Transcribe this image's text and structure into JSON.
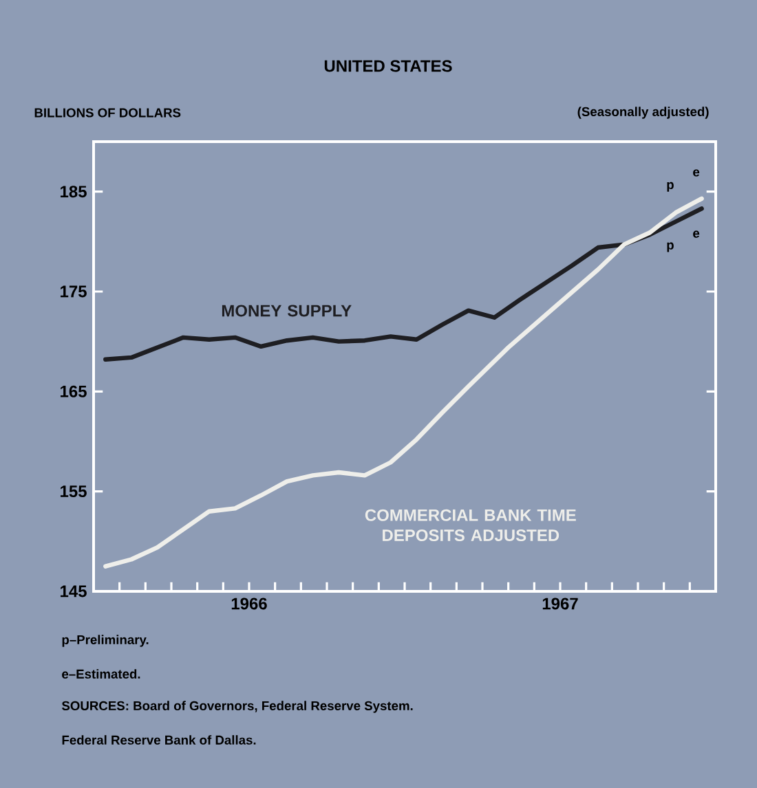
{
  "chart_data": {
    "type": "line",
    "title": "UNITED STATES",
    "subtitle": "(Seasonally adjusted)",
    "ylabel": "BILLIONS OF DOLLARS",
    "xlim": [
      "1966-01",
      "1968-01"
    ],
    "ylim": [
      145,
      190
    ],
    "yticks": [
      145,
      155,
      165,
      175,
      185
    ],
    "xticks": [
      {
        "value": "1966-02",
        "label": null
      },
      {
        "value": "1966-03",
        "label": null
      },
      {
        "value": "1966-04",
        "label": null
      },
      {
        "value": "1966-05",
        "label": null
      },
      {
        "value": "1966-06",
        "label": null
      },
      {
        "value": "1966-07",
        "label": "1966"
      },
      {
        "value": "1966-08",
        "label": null
      },
      {
        "value": "1966-09",
        "label": null
      },
      {
        "value": "1966-10",
        "label": null
      },
      {
        "value": "1966-11",
        "label": null
      },
      {
        "value": "1966-12",
        "label": null
      },
      {
        "value": "1967-01",
        "label": null
      },
      {
        "value": "1967-02",
        "label": null
      },
      {
        "value": "1967-03",
        "label": null
      },
      {
        "value": "1967-04",
        "label": null
      },
      {
        "value": "1967-05",
        "label": null
      },
      {
        "value": "1967-06",
        "label": null
      },
      {
        "value": "1967-07",
        "label": "1967"
      },
      {
        "value": "1967-08",
        "label": null
      },
      {
        "value": "1967-09",
        "label": null
      },
      {
        "value": "1967-10",
        "label": null
      },
      {
        "value": "1967-11",
        "label": null
      },
      {
        "value": "1967-12",
        "label": null
      }
    ],
    "series": [
      {
        "name": "MONEY SUPPLY",
        "color": "#1e1e22",
        "x": [
          "1966-01-15",
          "1966-02-15",
          "1966-03-15",
          "1966-04-15",
          "1966-05-15",
          "1966-06-15",
          "1966-07-15",
          "1966-08-15",
          "1966-09-15",
          "1966-10-15",
          "1966-11-15",
          "1966-12-15",
          "1967-01-15",
          "1967-02-15",
          "1967-03-15",
          "1967-04-15",
          "1967-05-15",
          "1967-06-15",
          "1967-07-15",
          "1967-08-15",
          "1967-09-15",
          "1967-10-15",
          "1967-11-15",
          "1967-12-15"
        ],
        "values": [
          168.2,
          168.4,
          169.4,
          170.4,
          170.2,
          170.4,
          169.5,
          170.1,
          170.4,
          170.0,
          170.1,
          170.5,
          170.2,
          171.7,
          173.1,
          172.4,
          174.2,
          175.9,
          177.6,
          179.4,
          179.7,
          180.7,
          182.0,
          183.3
        ]
      },
      {
        "name": "COMMERCIAL BANK TIME DEPOSITS ADJUSTED",
        "color": "#eeeeea",
        "x": [
          "1966-01-15",
          "1966-02-15",
          "1966-03-15",
          "1966-04-15",
          "1966-05-15",
          "1966-06-15",
          "1966-07-15",
          "1966-08-15",
          "1966-09-15",
          "1966-10-15",
          "1966-11-15",
          "1966-12-15",
          "1967-01-15",
          "1967-02-15",
          "1967-03-15",
          "1967-05-01",
          "1967-08-15",
          "1967-09-15",
          "1967-10-15",
          "1967-11-15",
          "1967-12-15"
        ],
        "values": [
          147.5,
          148.2,
          149.4,
          151.2,
          153.0,
          153.3,
          154.6,
          156.0,
          156.6,
          156.9,
          156.6,
          157.9,
          160.2,
          162.9,
          165.5,
          169.4,
          177.2,
          179.7,
          180.9,
          182.9,
          184.3
        ]
      }
    ],
    "annotations": [
      {
        "text": "p",
        "x": "1967-11-15",
        "y": 182.9
      },
      {
        "text": "e",
        "x": "1967-12-15",
        "y": 184.3
      },
      {
        "text": "p",
        "x": "1967-11-15",
        "y": 182.0
      },
      {
        "text": "e",
        "x": "1967-12-15",
        "y": 183.3
      },
      "p–Preliminary.",
      "e–Estimated.",
      "SOURCES: Board of Governors, Federal Reserve System.",
      "Federal Reserve Bank of Dallas."
    ]
  }
}
